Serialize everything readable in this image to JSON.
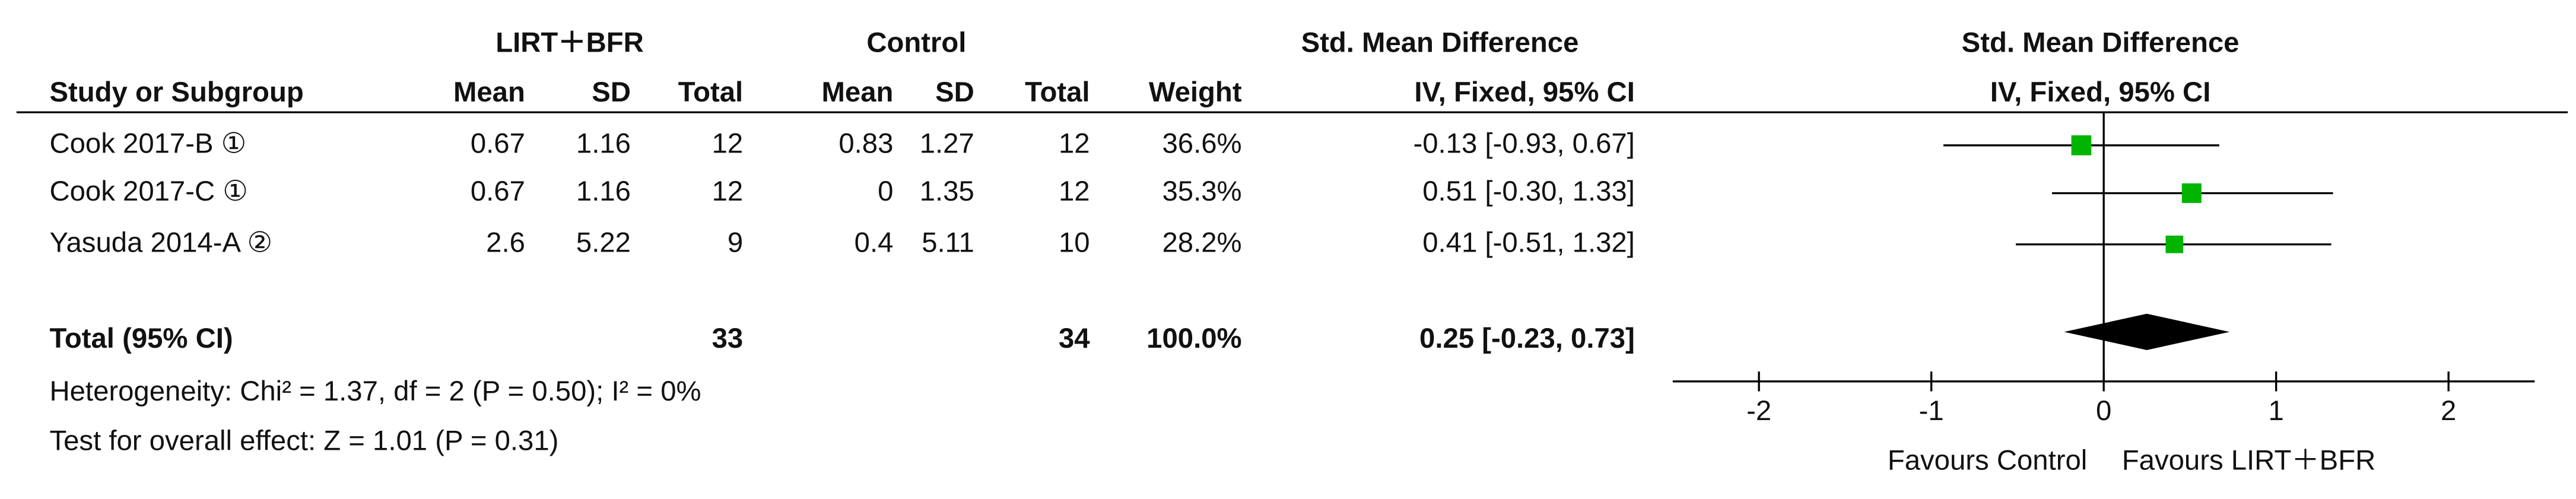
{
  "chart_data": {
    "type": "forest",
    "group_headers": [
      "LIRT＋BFR",
      "Control",
      "Std. Mean Difference",
      "Std. Mean Difference"
    ],
    "columns": [
      "Study or Subgroup",
      "Mean",
      "SD",
      "Total",
      "Mean",
      "SD",
      "Total",
      "Weight",
      "IV, Fixed, 95% CI",
      "IV, Fixed, 95% CI"
    ],
    "studies": [
      {
        "name": "Cook 2017-B ①",
        "exp_mean": 0.67,
        "exp_sd": 1.16,
        "exp_total": 12,
        "ctl_mean": 0.83,
        "ctl_sd": 1.27,
        "ctl_total": 12,
        "weight": 36.6,
        "weight_label": "36.6%",
        "smd": -0.13,
        "ci_low": -0.93,
        "ci_high": 0.67,
        "ci_label": "-0.13 [-0.93, 0.67]"
      },
      {
        "name": "Cook 2017-C ①",
        "exp_mean": 0.67,
        "exp_sd": 1.16,
        "exp_total": 12,
        "ctl_mean": 0,
        "ctl_sd": 1.35,
        "ctl_total": 12,
        "weight": 35.3,
        "weight_label": "35.3%",
        "smd": 0.51,
        "ci_low": -0.3,
        "ci_high": 1.33,
        "ci_label": "0.51 [-0.30, 1.33]"
      },
      {
        "name": "Yasuda 2014-A ②",
        "exp_mean": 2.6,
        "exp_sd": 5.22,
        "exp_total": 9,
        "ctl_mean": 0.4,
        "ctl_sd": 5.11,
        "ctl_total": 10,
        "weight": 28.2,
        "weight_label": "28.2%",
        "smd": 0.41,
        "ci_low": -0.51,
        "ci_high": 1.32,
        "ci_label": "0.41 [-0.51, 1.32]"
      }
    ],
    "total": {
      "name": "Total (95% CI)",
      "exp_total": 33,
      "ctl_total": 34,
      "weight": 100.0,
      "weight_label": "100.0%",
      "smd": 0.25,
      "ci_low": -0.23,
      "ci_high": 0.73,
      "ci_label": "0.25 [-0.23, 0.73]"
    },
    "heterogeneity": "Heterogeneity: Chi² = 1.37, df = 2 (P = 0.50); I² = 0%",
    "overall_effect": "Test for overall effect: Z = 1.01 (P = 0.31)",
    "xlim": [
      -2.5,
      2.5
    ],
    "xticks": [
      -2,
      -1,
      0,
      1,
      2
    ],
    "xlabel_left": "Favours Control",
    "xlabel_right": "Favours LIRT＋BFR",
    "color": "#00b400",
    "diamond_color": "#000000"
  }
}
